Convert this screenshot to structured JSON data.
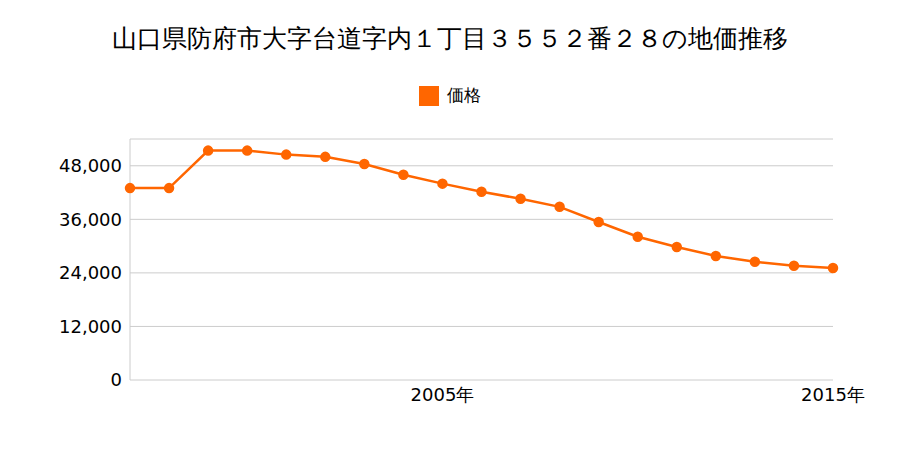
{
  "chart_data": {
    "type": "line",
    "title": "山口県防府市大字台道字内１丁目３５５２番２８の地価推移",
    "categories": [
      null,
      null,
      null,
      null,
      null,
      null,
      null,
      null,
      "2005年",
      null,
      null,
      null,
      null,
      null,
      null,
      null,
      null,
      null,
      "2015年"
    ],
    "series": [
      {
        "name": "価格",
        "color": "#ff6600",
        "values": [
          43000,
          43000,
          51400,
          51400,
          50500,
          50000,
          48400,
          46000,
          44000,
          42200,
          40600,
          38800,
          35400,
          32100,
          29800,
          27800,
          26500,
          25600,
          25100
        ]
      }
    ],
    "ylim": [
      0,
      54000
    ],
    "yticks": [
      {
        "value": 0,
        "label": "0"
      },
      {
        "value": 12000,
        "label": "12,000"
      },
      {
        "value": 24000,
        "label": "24,000"
      },
      {
        "value": 36000,
        "label": "36,000"
      },
      {
        "value": 48000,
        "label": "48,000"
      }
    ],
    "grid": true,
    "legend": "top",
    "marker": "circle"
  }
}
